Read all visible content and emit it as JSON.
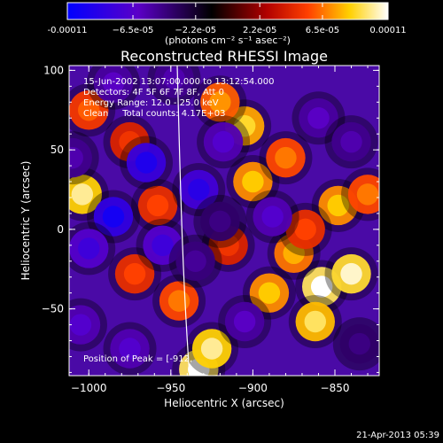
{
  "chart_data": {
    "type": "heatmap",
    "title": "Reconstructed RHESSI Image",
    "xlabel": "Heliocentric X (arcsec)",
    "ylabel": "Heliocentric Y (arcsec)",
    "xlim": [
      -1012,
      -823
    ],
    "ylim": [
      -92,
      103
    ],
    "x_ticks": [
      -1000,
      -950,
      -900,
      -850
    ],
    "y_ticks": [
      -50,
      0,
      50,
      100
    ],
    "x_tick_labels": [
      "−1000",
      "−950",
      "−900",
      "−850"
    ],
    "y_tick_labels": [
      "−50",
      "0",
      "50",
      "100"
    ],
    "colorbar": {
      "min": -0.00011,
      "max": 0.00011,
      "tick_values": [
        -0.00011,
        -6.5e-05,
        -2.2e-05,
        2.2e-05,
        6.5e-05,
        0.00011
      ],
      "tick_labels": [
        "-0.00011",
        "−6.5e-05",
        "−2.2e-05",
        "2.2e-05",
        "6.5e-05",
        "0.00011"
      ],
      "unit_label": "(photons cm⁻² s⁻¹ asec⁻²)",
      "colors": [
        "#0000ff",
        "#5b00c8",
        "#000000",
        "#b00000",
        "#ff4000",
        "#ffd000",
        "#ffffff"
      ]
    },
    "annotations": [
      "15-Jun-2002 13:07:00.000 to 13:12:54.000",
      "Detectors: 4F 5F 6F 7F 8F, Att 0",
      "Energy Range: 12.0 - 25.0 keV",
      "Clean     Total counts: 4.17E+03"
    ],
    "peak_label": "Position of Peak = [-912,",
    "limb_color": "#ffffff",
    "blobs": [
      {
        "x": -933,
        "y": -88,
        "v": 1.0
      },
      {
        "x": -925,
        "y": -75,
        "v": 0.9
      },
      {
        "x": -858,
        "y": -36,
        "v": 1.0
      },
      {
        "x": -840,
        "y": -28,
        "v": 0.95
      },
      {
        "x": -862,
        "y": -58,
        "v": 0.85
      },
      {
        "x": -848,
        "y": 15,
        "v": 0.75
      },
      {
        "x": -830,
        "y": 22,
        "v": 0.6
      },
      {
        "x": -890,
        "y": -40,
        "v": 0.75
      },
      {
        "x": -875,
        "y": -15,
        "v": 0.7
      },
      {
        "x": -900,
        "y": 30,
        "v": 0.75
      },
      {
        "x": -905,
        "y": 65,
        "v": 0.8
      },
      {
        "x": -920,
        "y": 80,
        "v": 0.65
      },
      {
        "x": -880,
        "y": 45,
        "v": 0.6
      },
      {
        "x": -868,
        "y": 0,
        "v": 0.5
      },
      {
        "x": -1004,
        "y": 22,
        "v": 0.9
      },
      {
        "x": -1000,
        "y": 75,
        "v": 0.55
      },
      {
        "x": -975,
        "y": 55,
        "v": 0.45
      },
      {
        "x": -958,
        "y": 15,
        "v": 0.5
      },
      {
        "x": -972,
        "y": -28,
        "v": 0.5
      },
      {
        "x": -945,
        "y": -45,
        "v": 0.6
      },
      {
        "x": -915,
        "y": -10,
        "v": 0.45
      },
      {
        "x": -985,
        "y": 8,
        "v": -0.9
      },
      {
        "x": -965,
        "y": 42,
        "v": -0.85
      },
      {
        "x": -1000,
        "y": -12,
        "v": -0.7
      },
      {
        "x": -1005,
        "y": -60,
        "v": -0.6
      },
      {
        "x": -975,
        "y": -75,
        "v": -0.6
      },
      {
        "x": -955,
        "y": -10,
        "v": -0.7
      },
      {
        "x": -933,
        "y": 25,
        "v": -0.8
      },
      {
        "x": -918,
        "y": 55,
        "v": -0.6
      },
      {
        "x": -888,
        "y": 8,
        "v": -0.6
      },
      {
        "x": -905,
        "y": -58,
        "v": -0.55
      },
      {
        "x": -860,
        "y": 70,
        "v": -0.55
      },
      {
        "x": -840,
        "y": 55,
        "v": -0.5
      },
      {
        "x": -835,
        "y": -72,
        "v": -0.4
      },
      {
        "x": -985,
        "y": 92,
        "v": -0.55
      },
      {
        "x": -948,
        "y": 95,
        "v": -0.5
      },
      {
        "x": -935,
        "y": -20,
        "v": -0.45
      },
      {
        "x": -920,
        "y": 5,
        "v": -0.4
      },
      {
        "x": -1010,
        "y": 45,
        "v": -0.5
      }
    ]
  },
  "footer_date": "21-Apr-2013 05:39"
}
